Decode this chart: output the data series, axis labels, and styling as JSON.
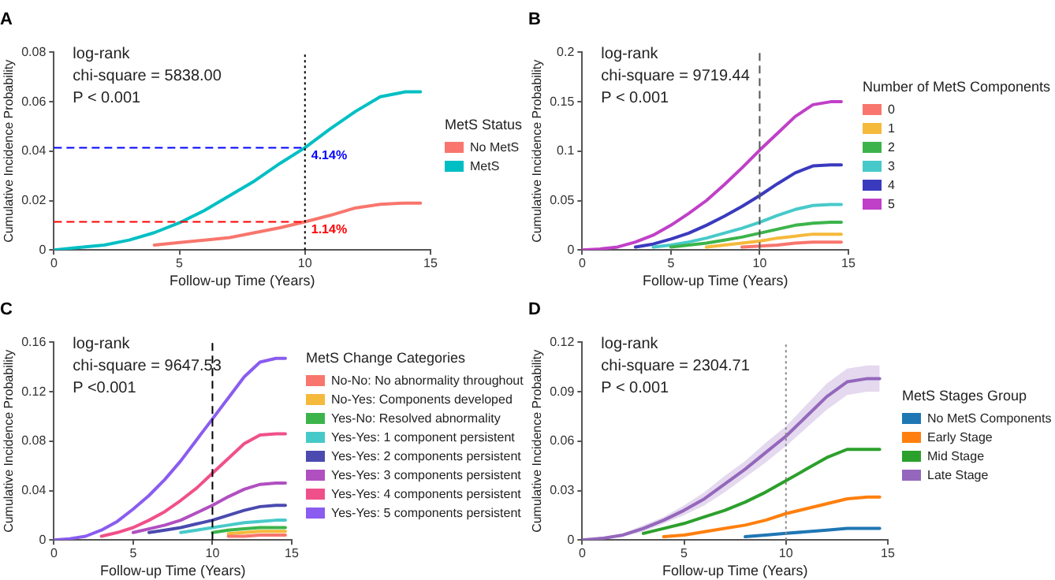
{
  "chart_data": [
    {
      "type": "line",
      "title": "A",
      "xlabel": "Follow-up Time (Years)",
      "ylabel": "Cumulative Incidence Probability",
      "legend_title": "MetS Status",
      "legend": "right",
      "grid": false,
      "annotations": [
        "log-rank",
        "chi-square = 5838.00",
        "P < 0.001"
      ],
      "x": [
        0,
        1,
        2,
        3,
        4,
        5,
        6,
        7,
        8,
        9,
        10,
        11,
        12,
        13,
        14,
        14.6
      ],
      "xlim": [
        0,
        15
      ],
      "xticks": [
        0,
        5,
        10,
        15
      ],
      "ylim": [
        0,
        0.08
      ],
      "yticks": [
        0,
        0.02,
        0.04,
        0.06,
        0.08
      ],
      "ref_lines": [
        {
          "axis": "x",
          "value": 10,
          "color": "#000000",
          "line_style": "dotted"
        },
        {
          "axis": "y",
          "value": 0.0414,
          "label": "4.14%",
          "color": "#0000ff",
          "line_style": "dashed"
        },
        {
          "axis": "y",
          "value": 0.0114,
          "label": "1.14%",
          "color": "#ff0000",
          "line_style": "dashed"
        }
      ],
      "series": [
        {
          "name": "No MetS",
          "color": "#f8766d",
          "values": [
            null,
            null,
            null,
            null,
            0.002,
            0.003,
            0.004,
            0.005,
            0.007,
            0.009,
            0.0114,
            0.014,
            0.017,
            0.0185,
            0.019,
            0.019
          ]
        },
        {
          "name": "MetS",
          "color": "#00bfc4",
          "values": [
            0,
            0.001,
            0.002,
            0.004,
            0.007,
            0.011,
            0.016,
            0.022,
            0.028,
            0.035,
            0.0414,
            0.049,
            0.056,
            0.062,
            0.064,
            0.064
          ]
        }
      ]
    },
    {
      "type": "line",
      "title": "B",
      "xlabel": "Follow-up Time (Years)",
      "ylabel": "Cumulative Incidence Probability",
      "legend_title": "Number of MetS Components",
      "legend": "right",
      "grid": false,
      "annotations": [
        "log-rank",
        "chi-square = 9719.44",
        "P < 0.001"
      ],
      "x": [
        0,
        1,
        2,
        3,
        4,
        5,
        6,
        7,
        8,
        9,
        10,
        11,
        12,
        13,
        14,
        14.6
      ],
      "xlim": [
        0,
        15
      ],
      "xticks": [
        0,
        5,
        10,
        15
      ],
      "ylim": [
        0,
        0.2
      ],
      "yticks": [
        0,
        0.05,
        0.1,
        0.15,
        0.2
      ],
      "ref_lines": [
        {
          "axis": "x",
          "value": 10,
          "color": "#555555",
          "line_style": "dashed"
        }
      ],
      "series": [
        {
          "name": "0",
          "color": "#f8766d",
          "values": [
            null,
            null,
            null,
            null,
            null,
            null,
            null,
            null,
            null,
            0.003,
            0.004,
            0.005,
            0.007,
            0.008,
            0.008,
            0.008
          ]
        },
        {
          "name": "1",
          "color": "#f5b93c",
          "values": [
            null,
            null,
            null,
            null,
            null,
            null,
            null,
            0.003,
            0.005,
            0.007,
            0.009,
            0.012,
            0.014,
            0.016,
            0.016,
            0.016
          ]
        },
        {
          "name": "2",
          "color": "#3cb44b",
          "values": [
            null,
            null,
            null,
            null,
            null,
            0.003,
            0.005,
            0.007,
            0.01,
            0.013,
            0.017,
            0.021,
            0.025,
            0.027,
            0.028,
            0.028
          ]
        },
        {
          "name": "3",
          "color": "#48c9c9",
          "values": [
            null,
            null,
            null,
            null,
            0.003,
            0.005,
            0.008,
            0.012,
            0.017,
            0.022,
            0.028,
            0.035,
            0.041,
            0.045,
            0.046,
            0.046
          ]
        },
        {
          "name": "4",
          "color": "#3a3abf",
          "values": [
            null,
            null,
            null,
            0.003,
            0.006,
            0.011,
            0.017,
            0.025,
            0.034,
            0.044,
            0.055,
            0.067,
            0.078,
            0.085,
            0.086,
            0.086
          ]
        },
        {
          "name": "5",
          "color": "#c040c8",
          "values": [
            0,
            0.001,
            0.003,
            0.008,
            0.015,
            0.025,
            0.037,
            0.05,
            0.066,
            0.083,
            0.101,
            0.118,
            0.135,
            0.147,
            0.15,
            0.15
          ]
        }
      ]
    },
    {
      "type": "line",
      "title": "C",
      "xlabel": "Follow-up Time (Years)",
      "ylabel": "Cumulative Incidence Probability",
      "legend_title": "MetS Change Categories",
      "legend": "right",
      "grid": false,
      "annotations": [
        "log-rank",
        "chi-square = 9647.53",
        "P <0.001"
      ],
      "x": [
        0,
        1,
        2,
        3,
        4,
        5,
        6,
        7,
        8,
        9,
        10,
        11,
        12,
        13,
        14,
        14.6
      ],
      "xlim": [
        0,
        15
      ],
      "xticks": [
        0,
        5,
        10,
        15
      ],
      "ylim": [
        0,
        0.16
      ],
      "yticks": [
        0,
        0.04,
        0.08,
        0.12,
        0.16
      ],
      "ref_lines": [
        {
          "axis": "x",
          "value": 10,
          "color": "#000000",
          "line_style": "dashed"
        }
      ],
      "series": [
        {
          "name": "No-No: No abnormality throughout",
          "color": "#f8766d",
          "values": [
            null,
            null,
            null,
            null,
            null,
            null,
            null,
            null,
            null,
            null,
            null,
            0.003,
            0.003,
            0.004,
            0.004,
            0.004
          ]
        },
        {
          "name": "No-Yes: Components developed",
          "color": "#f5b93c",
          "values": [
            null,
            null,
            null,
            null,
            null,
            null,
            null,
            null,
            null,
            null,
            null,
            0.005,
            0.006,
            0.007,
            0.007,
            0.007
          ]
        },
        {
          "name": "Yes-No: Resolved abnormality",
          "color": "#3cb44b",
          "values": [
            null,
            null,
            null,
            null,
            null,
            null,
            null,
            null,
            null,
            null,
            0.006,
            0.008,
            0.009,
            0.01,
            0.01,
            0.01
          ]
        },
        {
          "name": "Yes-Yes: 1 component persistent",
          "color": "#48c9c9",
          "values": [
            null,
            null,
            null,
            null,
            null,
            null,
            null,
            null,
            0.006,
            0.008,
            0.01,
            0.012,
            0.014,
            0.015,
            0.016,
            0.016
          ]
        },
        {
          "name": "Yes-Yes: 2 components persistent",
          "color": "#4a4ab0",
          "values": [
            null,
            null,
            null,
            null,
            null,
            null,
            0.006,
            0.008,
            0.01,
            0.013,
            0.016,
            0.02,
            0.024,
            0.027,
            0.028,
            0.028
          ]
        },
        {
          "name": "Yes-Yes: 3 components persistent",
          "color": "#b050c0",
          "values": [
            null,
            null,
            null,
            null,
            null,
            0.006,
            0.009,
            0.012,
            0.016,
            0.022,
            0.028,
            0.035,
            0.041,
            0.045,
            0.046,
            0.046
          ]
        },
        {
          "name": "Yes-Yes: 4 components persistent",
          "color": "#f0508a",
          "values": [
            null,
            null,
            null,
            0.003,
            0.006,
            0.01,
            0.016,
            0.023,
            0.032,
            0.042,
            0.054,
            0.066,
            0.078,
            0.085,
            0.086,
            0.086
          ]
        },
        {
          "name": "Yes-Yes: 5 components persistent",
          "color": "#8a5cf0",
          "values": [
            0,
            0.001,
            0.003,
            0.008,
            0.015,
            0.025,
            0.036,
            0.049,
            0.064,
            0.081,
            0.098,
            0.115,
            0.132,
            0.144,
            0.147,
            0.147
          ]
        }
      ]
    },
    {
      "type": "line",
      "title": "D",
      "xlabel": "Follow-up Time (Years)",
      "ylabel": "Cumulative Incidence Probability",
      "legend_title": "MetS Stages Group",
      "legend": "right",
      "grid": false,
      "annotations": [
        "log-rank",
        "chi-square = 2304.71",
        "P < 0.001"
      ],
      "x": [
        0,
        1,
        2,
        3,
        4,
        5,
        6,
        7,
        8,
        9,
        10,
        11,
        12,
        13,
        14,
        14.6
      ],
      "xlim": [
        0,
        15
      ],
      "xticks": [
        0,
        5,
        10,
        15
      ],
      "ylim": [
        0,
        0.12
      ],
      "yticks": [
        0,
        0.03,
        0.06,
        0.09,
        0.12
      ],
      "ref_lines": [
        {
          "axis": "x",
          "value": 10,
          "color": "#888888",
          "line_style": "dotted"
        }
      ],
      "series": [
        {
          "name": "No MetS Components",
          "color": "#1f77b4",
          "values": [
            null,
            null,
            null,
            null,
            null,
            null,
            null,
            null,
            0.002,
            0.003,
            0.004,
            0.005,
            0.006,
            0.007,
            0.007,
            0.007
          ]
        },
        {
          "name": "Early Stage",
          "color": "#ff7f0e",
          "values": [
            null,
            null,
            null,
            null,
            0.002,
            0.003,
            0.005,
            0.007,
            0.009,
            0.012,
            0.016,
            0.019,
            0.022,
            0.025,
            0.026,
            0.026
          ]
        },
        {
          "name": "Mid Stage",
          "color": "#2ca02c",
          "values": [
            null,
            null,
            null,
            0.004,
            0.007,
            0.01,
            0.014,
            0.018,
            0.023,
            0.029,
            0.036,
            0.043,
            0.05,
            0.055,
            0.055,
            0.055
          ]
        },
        {
          "name": "Late Stage",
          "color": "#9467bd",
          "values": [
            0,
            0.001,
            0.003,
            0.007,
            0.012,
            0.018,
            0.025,
            0.034,
            0.043,
            0.053,
            0.063,
            0.075,
            0.087,
            0.096,
            0.098,
            0.098
          ],
          "lower": [
            0,
            0,
            0.002,
            0.005,
            0.01,
            0.015,
            0.021,
            0.029,
            0.038,
            0.047,
            0.057,
            0.068,
            0.079,
            0.088,
            0.09,
            0.09
          ],
          "upper": [
            0,
            0.002,
            0.004,
            0.009,
            0.014,
            0.021,
            0.029,
            0.039,
            0.048,
            0.059,
            0.069,
            0.082,
            0.095,
            0.104,
            0.106,
            0.106
          ]
        }
      ]
    }
  ]
}
